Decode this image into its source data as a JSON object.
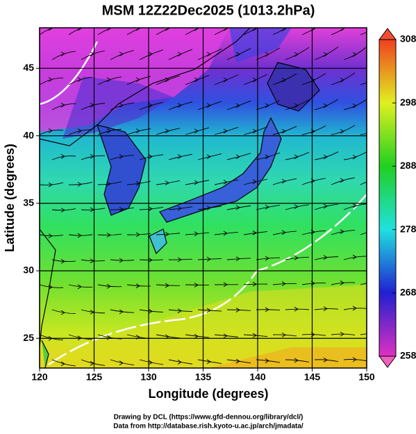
{
  "map": {
    "title": "MSM 12Z22Dec2025 (1013.2hPa)",
    "x_label": "Longitude (degrees)",
    "y_label": "Latitude  (degrees)",
    "xlim": [
      120,
      150
    ],
    "ylim": [
      22.8,
      48
    ],
    "xticks": [
      120,
      125,
      130,
      135,
      140,
      145,
      150
    ],
    "yticks": [
      25,
      30,
      35,
      40,
      45
    ],
    "colorbar": {
      "lim": [
        258,
        308
      ],
      "ticks": [
        258,
        268,
        278,
        288,
        298,
        308
      ]
    },
    "credits": [
      "Drawing by DCL (https://www.gfd-dennou.org/library/dcl/)",
      "Data from http://database.rish.kyoto-u.ac.jp/arch/jmadata/"
    ]
  }
}
